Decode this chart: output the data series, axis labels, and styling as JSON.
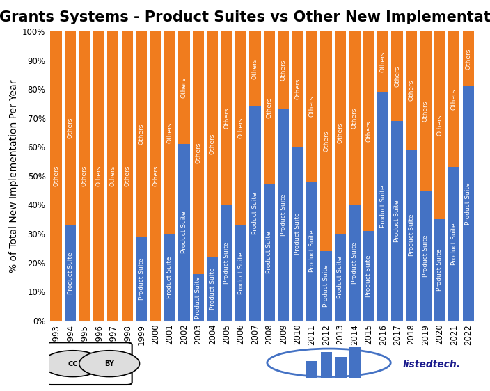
{
  "title": "Grants Systems - Product Suites vs Other New Implementations",
  "ylabel": "% of Total New Implementation Per Year",
  "years": [
    1993,
    1994,
    1995,
    1996,
    1997,
    1998,
    1999,
    2000,
    2001,
    2002,
    2003,
    2004,
    2005,
    2006,
    2007,
    2008,
    2009,
    2010,
    2011,
    2012,
    2013,
    2014,
    2015,
    2016,
    2017,
    2018,
    2019,
    2020,
    2021,
    2022
  ],
  "product_suite_pct": [
    0,
    33,
    0,
    0,
    0,
    0,
    29,
    0,
    30,
    61,
    16,
    22,
    40,
    33,
    74,
    47,
    73,
    60,
    48,
    24,
    30,
    40,
    31,
    79,
    69,
    59,
    45,
    35,
    53,
    81
  ],
  "color_product_suite": "#4472c4",
  "color_others": "#f07c1e",
  "label_product_suite": "Product Suite",
  "label_others": "Others",
  "title_fontsize": 15,
  "tick_fontsize": 8.5,
  "ylabel_fontsize": 10,
  "bar_label_fontsize": 6.5,
  "background_color": "#ffffff",
  "yticks": [
    0.0,
    0.1,
    0.2,
    0.3,
    0.4,
    0.5,
    0.6,
    0.7,
    0.8,
    0.9,
    1.0
  ],
  "ytick_labels": [
    "0%",
    "10%",
    "20%",
    "30%",
    "40%",
    "50%",
    "60%",
    "70%",
    "80%",
    "90%",
    "100%"
  ]
}
